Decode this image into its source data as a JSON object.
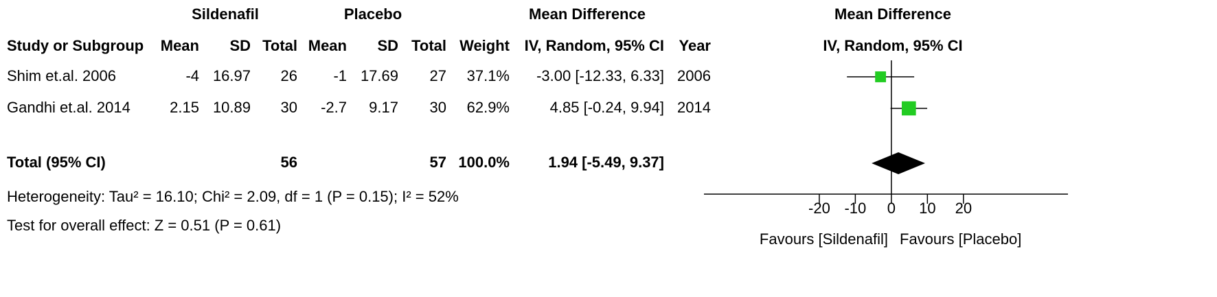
{
  "table": {
    "group_headers": [
      "Sildenafil",
      "Placebo",
      "Mean Difference"
    ],
    "columns": [
      "Study or Subgroup",
      "Mean",
      "SD",
      "Total",
      "Mean",
      "SD",
      "Total",
      "Weight",
      "IV, Random, 95% CI",
      "Year"
    ],
    "rows": [
      [
        "Shim et.al. 2006",
        "-4",
        "16.97",
        "26",
        "-1",
        "17.69",
        "27",
        "37.1%",
        "-3.00 [-12.33, 6.33]",
        "2006"
      ],
      [
        "Gandhi et.al. 2014",
        "2.15",
        "10.89",
        "30",
        "-2.7",
        "9.17",
        "30",
        "62.9%",
        "4.85 [-0.24, 9.94]",
        "2014"
      ]
    ],
    "total": {
      "label": "Total (95% CI)",
      "total_1": "56",
      "total_2": "57",
      "weight": "100.0%",
      "ci": "1.94 [-5.49, 9.37]"
    },
    "heterogeneity": "Heterogeneity: Tau² = 16.10; Chi² = 2.09, df = 1 (P = 0.15); I² = 52%",
    "overall_effect": "Test for overall effect: Z = 0.51 (P = 0.61)"
  },
  "chart_data": {
    "type": "forest",
    "title": "Mean Difference",
    "subtitle": "IV, Random, 95% CI",
    "values": [
      -3.0,
      4.85
    ],
    "lower": [
      -12.33,
      -0.24
    ],
    "upper": [
      6.33,
      9.94
    ],
    "weights": [
      37.1,
      62.9
    ],
    "total": {
      "value": 1.94,
      "lower": -5.49,
      "upper": 9.37
    },
    "color": "#22cc22",
    "xlim": [
      -52,
      49
    ],
    "xticks": [
      -20,
      -10,
      0,
      10,
      20
    ],
    "favours_left": "Favours [Sildenafil]",
    "favours_right": "Favours [Placebo]"
  }
}
